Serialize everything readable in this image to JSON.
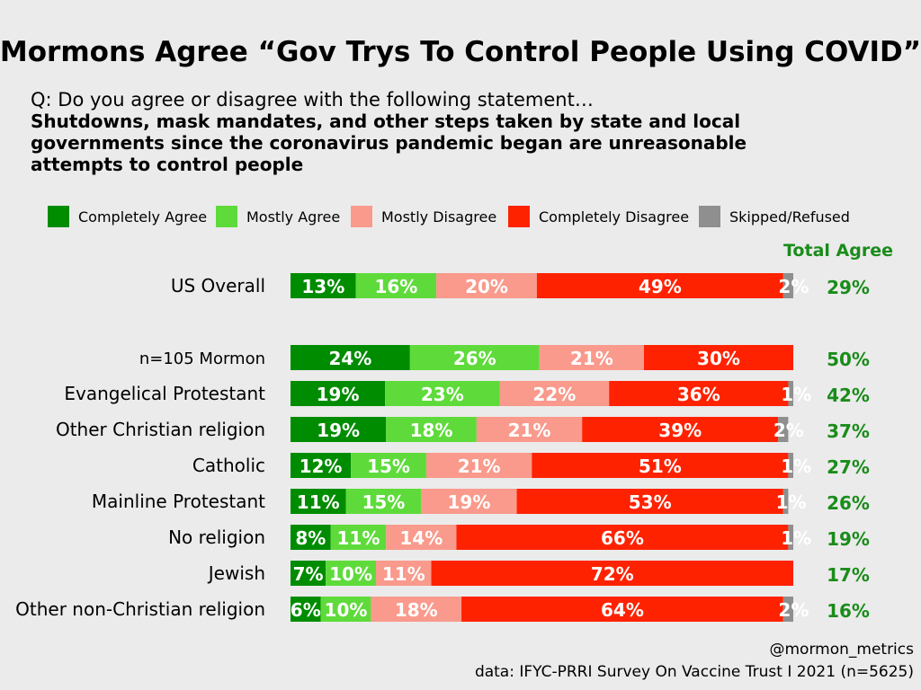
{
  "chart_data": {
    "type": "bar",
    "orientation": "horizontal-stacked-100",
    "title": "Mormons Agree “Gov Trys To Control People Using COVID”",
    "question": "Q: Do you agree or disagree with the following statement…",
    "statement": [
      "Shutdowns, mask mandates, and other steps taken by state and local",
      "governments since the coronavirus pandemic began are unreasonable",
      "attempts to control people"
    ],
    "legend": [
      {
        "name": "Completely Agree",
        "color": "#008c00"
      },
      {
        "name": "Mostly Agree",
        "color": "#5edb3a"
      },
      {
        "name": "Mostly Disagree",
        "color": "#f99a8c"
      },
      {
        "name": "Completely Disagree",
        "color": "#ff2200"
      },
      {
        "name": "Skipped/Refused",
        "color": "#8f8f8f"
      }
    ],
    "total_header": "Total Agree",
    "total_color": "#1a8c1a",
    "categories": [
      "US Overall",
      "n=105 Mormon",
      "Evangelical Protestant",
      "Other Christian religion",
      "Catholic",
      "Mainline Protestant",
      "No religion",
      "Jewish",
      "Other non-Christian religion"
    ],
    "series": [
      {
        "name": "Completely Agree",
        "values": [
          13,
          24,
          19,
          19,
          12,
          11,
          8,
          7,
          6
        ]
      },
      {
        "name": "Mostly Agree",
        "values": [
          16,
          26,
          23,
          18,
          15,
          15,
          11,
          10,
          10
        ]
      },
      {
        "name": "Mostly Disagree",
        "values": [
          20,
          21,
          22,
          21,
          21,
          19,
          14,
          11,
          18
        ]
      },
      {
        "name": "Completely Disagree",
        "values": [
          49,
          30,
          36,
          39,
          51,
          53,
          66,
          72,
          64
        ]
      },
      {
        "name": "Skipped/Refused",
        "values": [
          2,
          0,
          1,
          2,
          1,
          1,
          1,
          0,
          2
        ]
      }
    ],
    "total_agree": [
      "29%",
      "50%",
      "42%",
      "37%",
      "27%",
      "26%",
      "19%",
      "17%",
      "16%"
    ],
    "xlim": [
      0,
      100
    ],
    "grid": false,
    "credit": "@mormon_metrics",
    "source": "data: IFYC-PRRI Survey On Vaccine Trust I 2021 (n=5625)"
  }
}
